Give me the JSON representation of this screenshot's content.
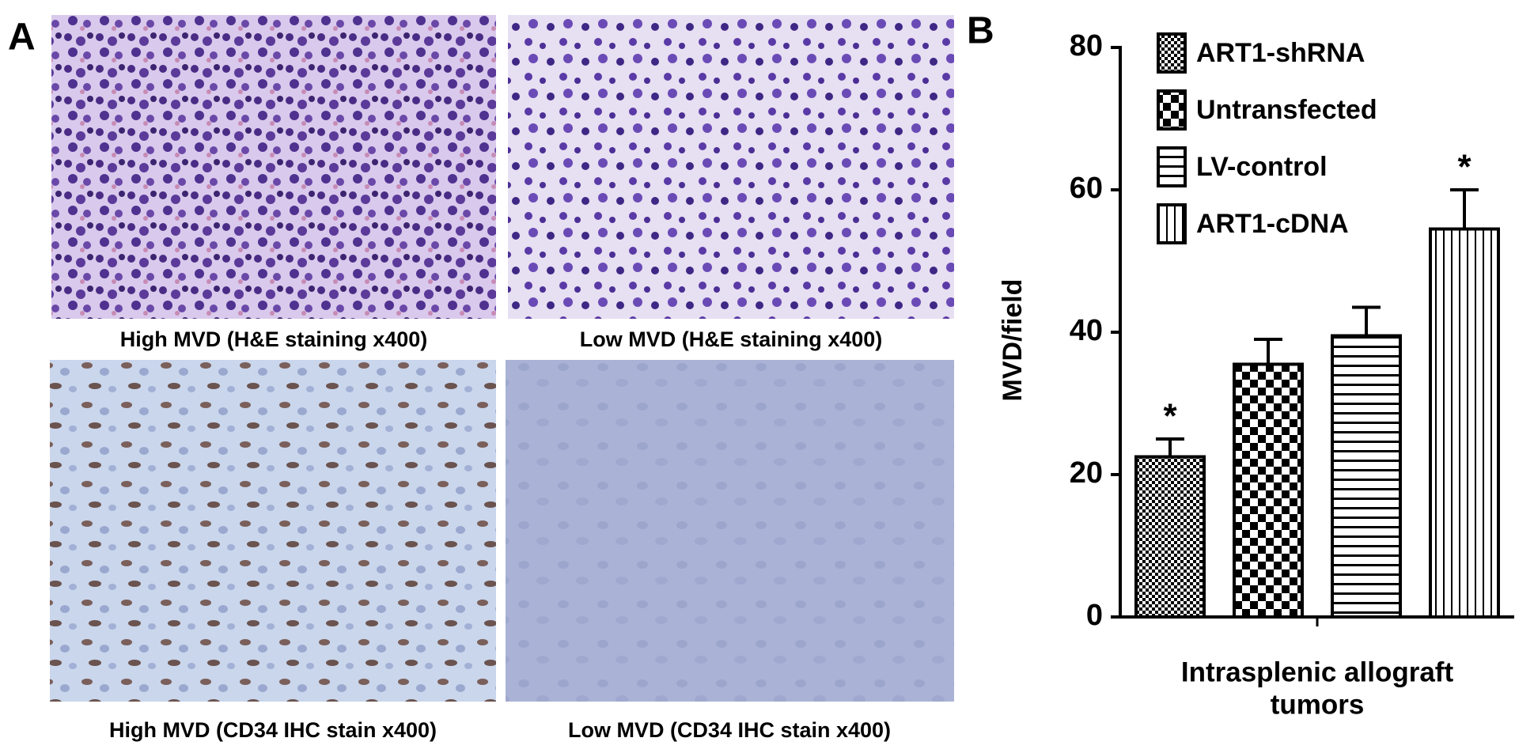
{
  "panel_a": {
    "label": "A",
    "captions": [
      "High MVD (H&E staining x400)",
      "Low MVD (H&E staining x400)",
      "High MVD (CD34 IHC stain x400)",
      "Low MVD (CD34 IHC stain x400)"
    ]
  },
  "chart_data": {
    "type": "bar",
    "panel_label": "B",
    "ylabel": "MVD/field",
    "xlabel": [
      "Intrasplenic allograft",
      "tumors"
    ],
    "categories": [
      null
    ],
    "series": [
      {
        "name": "ART1-shRNA",
        "color": "#000000",
        "pattern": "small-checker",
        "values": [
          22.5
        ],
        "errors": [
          2.5
        ],
        "annotation": "*"
      },
      {
        "name": "Untransfected",
        "color": "#000000",
        "pattern": "checker",
        "values": [
          35.5
        ],
        "errors": [
          3.5
        ]
      },
      {
        "name": "LV-control",
        "color": "#000000",
        "pattern": "horizontal-lines",
        "values": [
          39.5
        ],
        "errors": [
          4
        ]
      },
      {
        "name": "ART1-cDNA",
        "color": "#000000",
        "pattern": "vertical-lines",
        "values": [
          54.5
        ],
        "errors": [
          5.5
        ],
        "annotation": "*"
      }
    ],
    "ylim": [
      0,
      80
    ],
    "yticks": [
      0,
      20,
      40,
      60,
      80
    ],
    "legend": "upper-left"
  }
}
